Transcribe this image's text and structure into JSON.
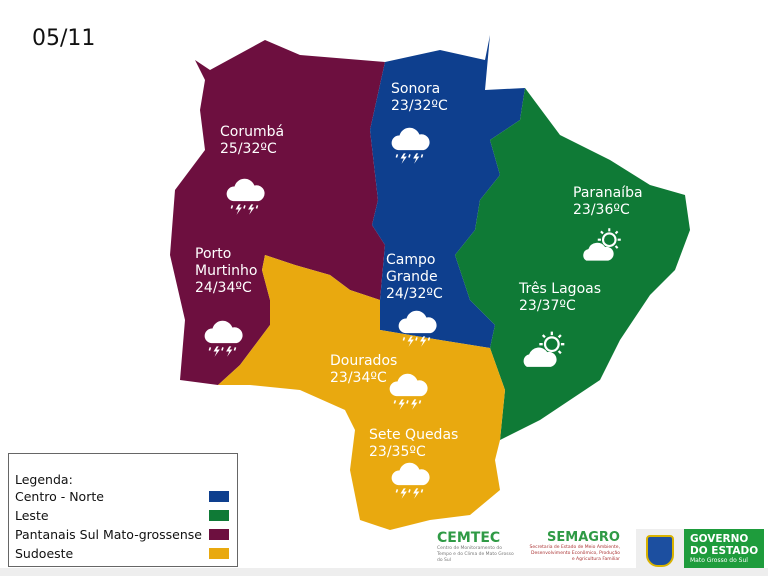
{
  "date": "05/11",
  "colors": {
    "centro_norte": "#0e3f8e",
    "leste": "#0f7a36",
    "pantanais": "#6d0f3f",
    "sudoeste": "#e9a90f"
  },
  "cities": [
    {
      "name": "Corumbá",
      "temp": "25/32ºC",
      "icon": "cloud-storm-icon"
    },
    {
      "name": "Porto Murtinho",
      "line1": "Porto",
      "line2": "Murtinho",
      "temp": "24/34ºC",
      "icon": "cloud-storm-icon"
    },
    {
      "name": "Sonora",
      "temp": "23/32ºC",
      "icon": "cloud-storm-icon"
    },
    {
      "name": "Campo Grande",
      "line1": "Campo",
      "line2": "Grande",
      "temp": "24/32ºC",
      "icon": "cloud-storm-icon"
    },
    {
      "name": "Paranaíba",
      "temp": "23/36ºC",
      "icon": "sun-cloud-icon"
    },
    {
      "name": "Três Lagoas",
      "temp": "23/37ºC",
      "icon": "sun-cloud-icon"
    },
    {
      "name": "Dourados",
      "temp": "23/34ºC",
      "icon": "cloud-storm-icon"
    },
    {
      "name": "Sete Quedas",
      "temp": "23/35ºC",
      "icon": "cloud-storm-icon"
    }
  ],
  "legend": {
    "title": "Legenda:",
    "items": [
      "Centro - Norte",
      "Leste",
      "Pantanais Sul Mato-grossense",
      "Sudoeste"
    ]
  },
  "logos": {
    "cemtec": "CEMTEC",
    "cemtec_sub": "Centro de Monitoramento do Tempo e do Clima de Mato Grosso do Sul",
    "semagro": "SEMAGRO",
    "semagro_sub": "Secretaria de Estado de Meio Ambiente, Desenvolvimento Econômico, Produção e Agricultura Familiar",
    "gov1": "GOVERNO",
    "gov2": "DO ESTADO",
    "gov3": "Mato Grosso do Sul"
  }
}
